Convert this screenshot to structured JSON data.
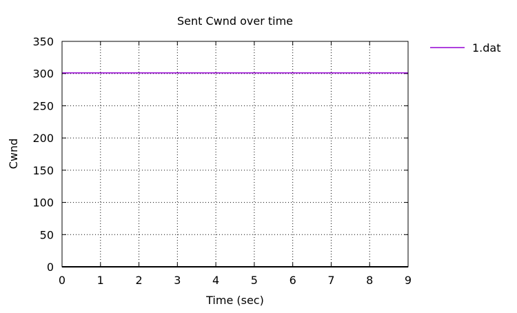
{
  "chart_data": {
    "type": "line",
    "title": "Sent Cwnd over time",
    "xlabel": "Time (sec)",
    "ylabel": "Cwnd",
    "xlim": [
      0,
      9
    ],
    "ylim": [
      0,
      350
    ],
    "xticks": [
      "0",
      "1",
      "2",
      "3",
      "4",
      "5",
      "6",
      "7",
      "8",
      "9"
    ],
    "yticks": [
      "0",
      "50",
      "100",
      "150",
      "200",
      "250",
      "300",
      "350"
    ],
    "grid": true,
    "grid_style": "dotted",
    "legend_position": "top-right outside",
    "series": [
      {
        "name": "1.dat",
        "color": "#9400d3",
        "x": [
          0,
          9
        ],
        "y": [
          301,
          301
        ]
      }
    ]
  }
}
